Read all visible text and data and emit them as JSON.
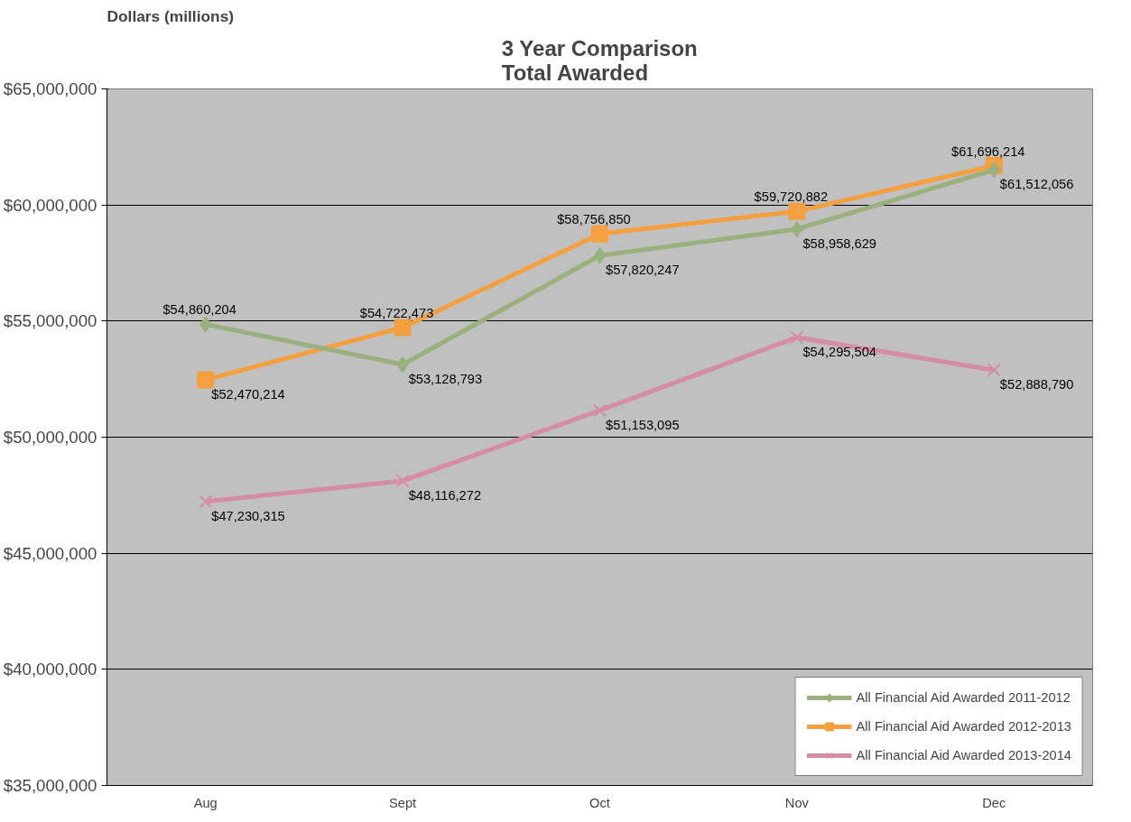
{
  "chart_data": {
    "type": "line",
    "title": "3 Year Comparison\nTotal Awarded",
    "ylabel": "Dollars   (millions)",
    "categories": [
      "Aug",
      "Sept",
      "Oct",
      "Nov",
      "Dec"
    ],
    "series": [
      {
        "name": "All Financial Aid Awarded 2011-2012",
        "color": "#9bb07f",
        "marker": "diamond",
        "values": [
          54860204,
          53128793,
          57820247,
          58958629,
          61512056
        ],
        "value_labels": [
          "$54,860,204",
          "$53,128,793",
          "$57,820,247",
          "$58,958,629",
          "$61,512,056"
        ]
      },
      {
        "name": "All Financial Aid Awarded 2012-2013",
        "color": "#f5a040",
        "marker": "square",
        "values": [
          52470214,
          54722473,
          58756850,
          59720882,
          61696214
        ],
        "value_labels": [
          "$52,470,214",
          "$54,722,473",
          "$58,756,850",
          "$59,720,882",
          "$61,696,214"
        ]
      },
      {
        "name": "All Financial Aid Awarded 2013-2014",
        "color": "#d58ca6",
        "marker": "cross",
        "values": [
          47230315,
          48116272,
          51153095,
          54295504,
          52888790
        ],
        "value_labels": [
          "$47,230,315",
          "$48,116,272",
          "$51,153,095",
          "$54,295,504",
          "$52,888,790"
        ]
      }
    ],
    "ylim": [
      35000000,
      65000000
    ],
    "yticks": [
      {
        "value": 35000000,
        "label": "$35,000,000"
      },
      {
        "value": 40000000,
        "label": "$40,000,000"
      },
      {
        "value": 45000000,
        "label": "$45,000,000"
      },
      {
        "value": 50000000,
        "label": "$50,000,000"
      },
      {
        "value": 55000000,
        "label": "$55,000,000"
      },
      {
        "value": 60000000,
        "label": "$60,000,000"
      },
      {
        "value": 65000000,
        "label": "$65,000,000"
      }
    ],
    "grid": "y",
    "legend": "bottom right",
    "line_style": "solid"
  }
}
